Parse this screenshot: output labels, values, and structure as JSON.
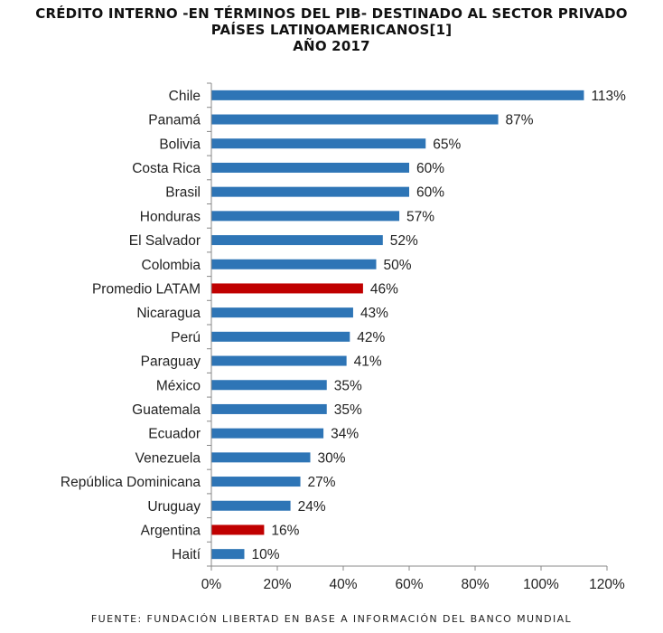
{
  "chart_data": {
    "type": "bar",
    "orientation": "horizontal",
    "title": [
      "CRÉDITO INTERNO -EN TÉRMINOS DEL PIB- DESTINADO AL SECTOR PRIVADO",
      "PAÍSES LATINOAMERICANOS[1]",
      "AÑO 2017"
    ],
    "categories": [
      "Chile",
      "Panamá",
      "Bolivia",
      "Costa Rica",
      "Brasil",
      "Honduras",
      "El Salvador",
      "Colombia",
      "Promedio LATAM",
      "Nicaragua",
      "Perú",
      "Paraguay",
      "México",
      "Guatemala",
      "Ecuador",
      "Venezuela",
      "República Dominicana",
      "Uruguay",
      "Argentina",
      "Haití"
    ],
    "values": [
      113,
      87,
      65,
      60,
      60,
      57,
      52,
      50,
      46,
      43,
      42,
      41,
      35,
      35,
      34,
      30,
      27,
      24,
      16,
      10
    ],
    "value_labels": [
      "113%",
      "87%",
      "65%",
      "60%",
      "60%",
      "57%",
      "52%",
      "50%",
      "46%",
      "43%",
      "42%",
      "41%",
      "35%",
      "35%",
      "34%",
      "30%",
      "27%",
      "24%",
      "16%",
      "10%"
    ],
    "highlighted": [
      "Promedio LATAM",
      "Argentina"
    ],
    "xlim": [
      0,
      120
    ],
    "xticks": [
      0,
      20,
      40,
      60,
      80,
      100,
      120
    ],
    "xtick_labels": [
      "0%",
      "20%",
      "40%",
      "60%",
      "80%",
      "100%",
      "120%"
    ],
    "colors": {
      "bar": "#2E75B6",
      "highlight": "#C00000",
      "axis": "#888888"
    },
    "grid": false,
    "source": "FUENTE: FUNDACIÓN LIBERTAD EN BASE A INFORMACIÓN DEL BANCO MUNDIAL"
  }
}
